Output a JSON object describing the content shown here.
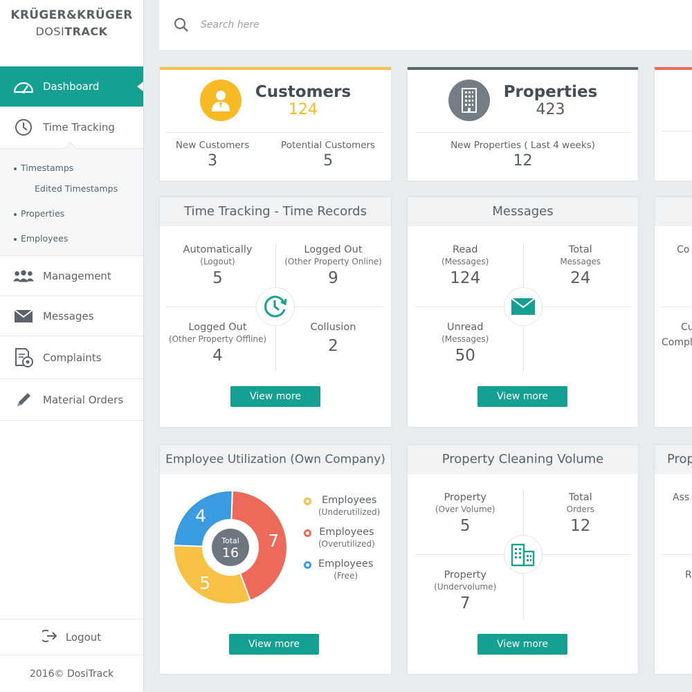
{
  "brand": {
    "line1": "KRÜGER&KRÜGER",
    "line2a": "DOSI",
    "line2b": "TRACK"
  },
  "sidebar": {
    "items": [
      {
        "label": "Dashboard",
        "icon": "dashboard-gauge-icon"
      },
      {
        "label": "Time Tracking",
        "icon": "clock-icon"
      },
      {
        "label": "Management",
        "icon": "people-group-icon"
      },
      {
        "label": "Messages",
        "icon": "envelope-icon"
      },
      {
        "label": "Complaints",
        "icon": "document-complaint-icon"
      },
      {
        "label": "Material Orders",
        "icon": "pencil-icon"
      }
    ],
    "submenu": [
      "Timestamps",
      "Edited Timestamps",
      "Properties",
      "Employees"
    ],
    "logout": "Logout",
    "copyright": "2016© DosiTrack"
  },
  "search": {
    "placeholder": "Search here"
  },
  "colors": {
    "teal": "#14a191",
    "yellow": "#f7c143",
    "red": "#ec6a5a",
    "blue": "#3b9be0",
    "gray": "#7a838b"
  },
  "customers": {
    "title": "Customers",
    "value": "124",
    "stats": [
      {
        "label": "New Customers",
        "value": "3"
      },
      {
        "label": "Potential Customers",
        "value": "5"
      }
    ]
  },
  "properties": {
    "title": "Properties",
    "value": "423",
    "stats": [
      {
        "label": "New Properties ( Last 4 weeks)",
        "value": "12"
      }
    ]
  },
  "time_records": {
    "title": "Time Tracking - Time Records",
    "cells": [
      {
        "a": "Automatically",
        "b": "(Logout)",
        "n": "5"
      },
      {
        "a": "Logged Out",
        "b": "(Other Property Online)",
        "n": "9"
      },
      {
        "a": "Logged Out",
        "b": "(Other Property Offline)",
        "n": "4"
      },
      {
        "a": "Collusion",
        "b": "",
        "n": "2"
      }
    ],
    "button": "View more"
  },
  "messages": {
    "title": "Messages",
    "cells": [
      {
        "a": "Read",
        "b": "(Messages)",
        "n": "124"
      },
      {
        "a": "Total",
        "b": "Messages",
        "n": "24"
      },
      {
        "a": "Unread",
        "b": "(Messages)",
        "n": "50"
      }
    ],
    "button": "View more"
  },
  "utilization": {
    "title": "Employee Utilization (Own Company)",
    "total_label": "Total",
    "total_value": "16",
    "legend": [
      {
        "a": "Employees",
        "b": "(Underutilized)"
      },
      {
        "a": "Employees",
        "b": "(Overutilized)"
      },
      {
        "a": "Employees",
        "b": "(Free)"
      }
    ],
    "button": "View more"
  },
  "chart_data": {
    "type": "pie",
    "categories": [
      "Employees (Underutilized)",
      "Employees (Overutilized)",
      "Employees (Free)"
    ],
    "values": [
      5,
      7,
      4
    ],
    "colors": [
      "#f7c143",
      "#ec6a5a",
      "#3b9be0"
    ],
    "total": 16
  },
  "cleaning": {
    "title": "Property Cleaning Volume",
    "cells": [
      {
        "a": "Property",
        "b": "(Over Volume)",
        "n": "5"
      },
      {
        "a": "Total",
        "b": "Orders",
        "n": "12"
      },
      {
        "a": "Property",
        "b": "(Undervolume)",
        "n": "7"
      }
    ],
    "button": "View more"
  },
  "partial": {
    "col3_mid_top": "Co",
    "col3_mid_bot1": "Cu",
    "col3_mid_bot2": "Compl",
    "col3_bot_title": "Prop",
    "col3_bot_top": "Ass",
    "col3_bot_bot": "R"
  }
}
